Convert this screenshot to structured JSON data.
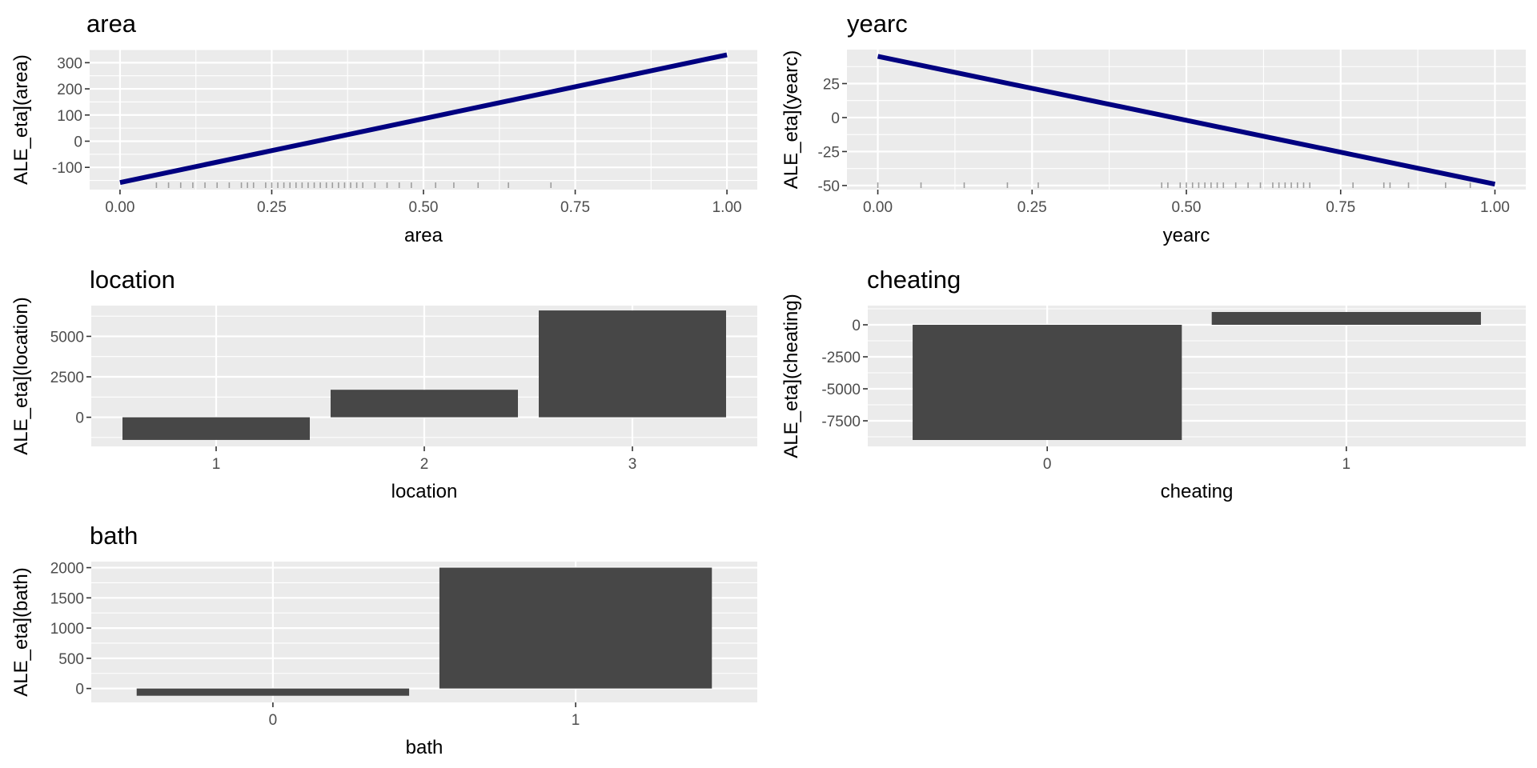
{
  "chart_data": [
    {
      "type": "line",
      "title": "area",
      "xlabel": "area",
      "ylabel": "ALE_eta](area)",
      "xlim": [
        0,
        1
      ],
      "ylim": [
        -185,
        350
      ],
      "x_ticks": [
        0,
        0.25,
        0.5,
        0.75,
        1
      ],
      "x_tick_labels": [
        "0.00",
        "0.25",
        "0.50",
        "0.75",
        "1.00"
      ],
      "y_ticks": [
        -100,
        0,
        100,
        200,
        300
      ],
      "y_tick_labels": [
        "-100",
        "0",
        "100",
        "200",
        "300"
      ],
      "series": [
        {
          "name": "ALE",
          "color": "#000080",
          "x": [
            0,
            1
          ],
          "y": [
            -158,
            330
          ]
        }
      ],
      "rug": [
        0.06,
        0.08,
        0.1,
        0.12,
        0.14,
        0.16,
        0.18,
        0.2,
        0.21,
        0.22,
        0.24,
        0.25,
        0.26,
        0.27,
        0.28,
        0.29,
        0.3,
        0.31,
        0.32,
        0.33,
        0.34,
        0.35,
        0.36,
        0.37,
        0.38,
        0.39,
        0.4,
        0.42,
        0.44,
        0.46,
        0.48,
        0.52,
        0.55,
        0.59,
        0.64,
        0.71
      ]
    },
    {
      "type": "line",
      "title": "yearc",
      "xlabel": "yearc",
      "ylabel": "ALE_eta](yearc)",
      "xlim": [
        0,
        1
      ],
      "ylim": [
        -53,
        50
      ],
      "x_ticks": [
        0,
        0.25,
        0.5,
        0.75,
        1
      ],
      "x_tick_labels": [
        "0.00",
        "0.25",
        "0.50",
        "0.75",
        "1.00"
      ],
      "y_ticks": [
        -50,
        -25,
        0,
        25
      ],
      "y_tick_labels": [
        "-50",
        "-25",
        "0",
        "25"
      ],
      "series": [
        {
          "name": "ALE",
          "color": "#000080",
          "x": [
            0,
            1
          ],
          "y": [
            45,
            -49
          ]
        }
      ],
      "rug": [
        0.0,
        0.07,
        0.14,
        0.21,
        0.26,
        0.46,
        0.47,
        0.49,
        0.5,
        0.51,
        0.52,
        0.53,
        0.54,
        0.55,
        0.56,
        0.58,
        0.6,
        0.62,
        0.64,
        0.65,
        0.66,
        0.67,
        0.68,
        0.69,
        0.7,
        0.77,
        0.82,
        0.83,
        0.86,
        0.92,
        0.96
      ]
    },
    {
      "type": "bar",
      "title": "location",
      "xlabel": "location",
      "ylabel": "ALE_eta](location)",
      "categories": [
        "1",
        "2",
        "3"
      ],
      "values": [
        -1400,
        1700,
        6600
      ],
      "ylim": [
        -1800,
        6900
      ],
      "y_ticks": [
        0,
        2500,
        5000
      ],
      "y_tick_labels": [
        "0",
        "2500",
        "5000"
      ]
    },
    {
      "type": "bar",
      "title": "cheating",
      "xlabel": "cheating",
      "ylabel": "ALE_eta](cheating)",
      "categories": [
        "0",
        "1"
      ],
      "values": [
        -9000,
        1000
      ],
      "ylim": [
        -9500,
        1500
      ],
      "y_ticks": [
        -7500,
        -5000,
        -2500,
        0
      ],
      "y_tick_labels": [
        "-7500",
        "-5000",
        "-2500",
        "0"
      ]
    },
    {
      "type": "bar",
      "title": "bath",
      "xlabel": "bath",
      "ylabel": "ALE_eta](bath)",
      "categories": [
        "0",
        "1"
      ],
      "values": [
        -120,
        2000
      ],
      "ylim": [
        -230,
        2100
      ],
      "y_ticks": [
        0,
        500,
        1000,
        1500,
        2000
      ],
      "y_tick_labels": [
        "0",
        "500",
        "1000",
        "1500",
        "2000"
      ]
    }
  ]
}
